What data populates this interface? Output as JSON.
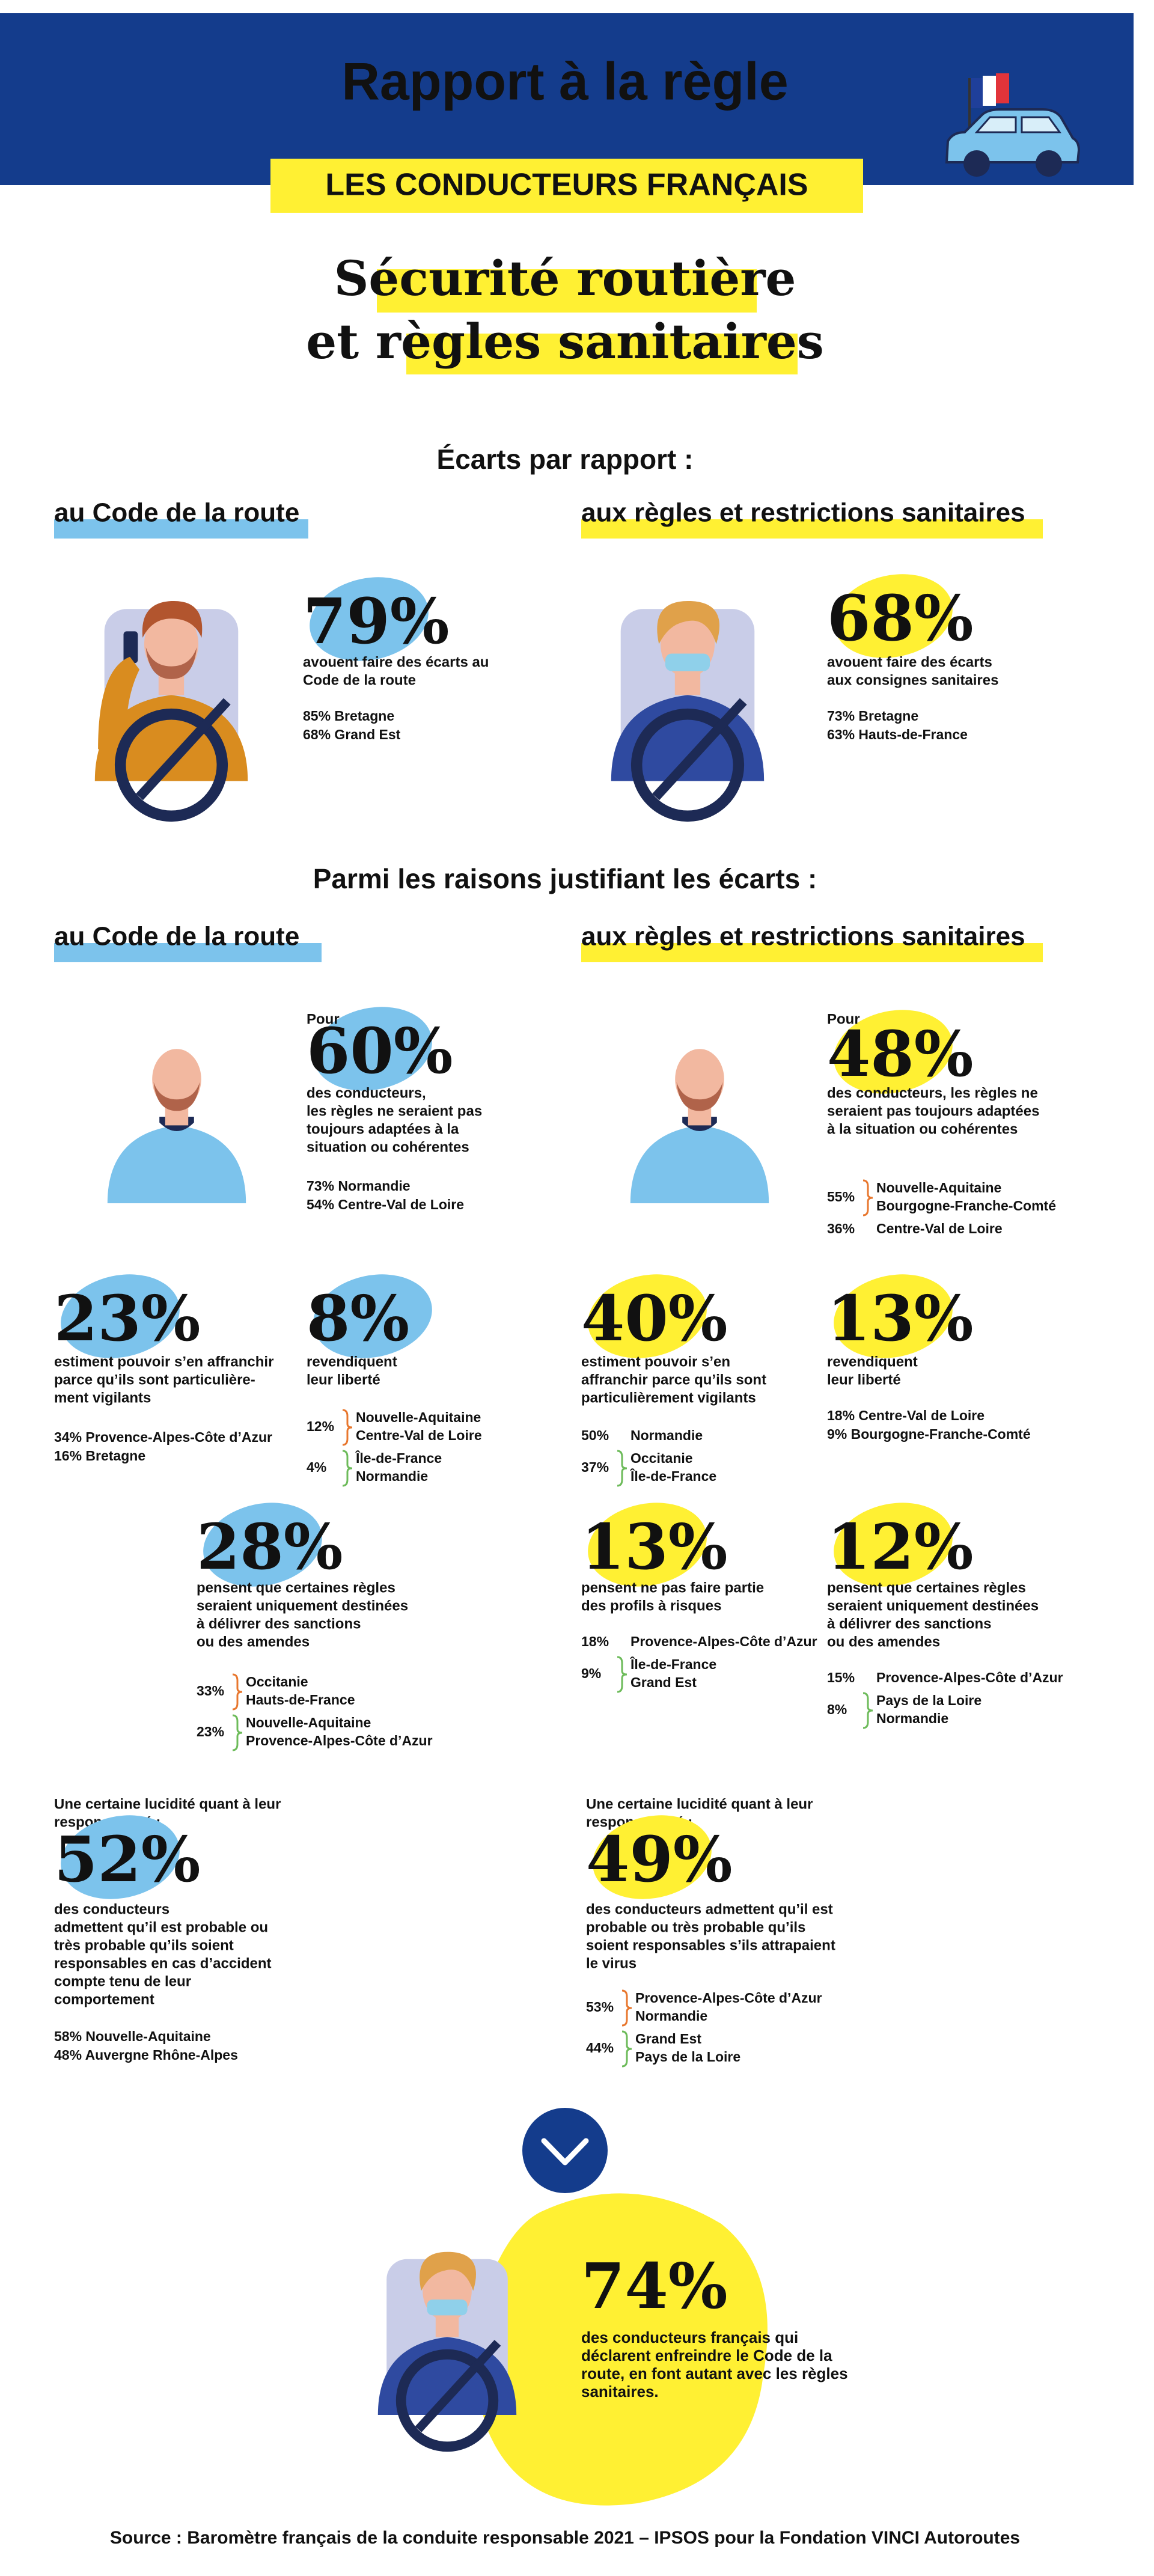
{
  "header": {
    "title": "Rapport à la règle",
    "subtitle": "LES CONDUCTEURS FRANÇAIS"
  },
  "headline": [
    "Sécurité routière",
    "et règles sanitaires"
  ],
  "sections": [
    {
      "title": "Écarts par rapport :",
      "columns": [
        "au Code de la route",
        "aux règles et restrictions sanitaires"
      ]
    },
    {
      "title": "Parmi les raisons justifiant les écarts :",
      "columns": [
        "au Code de la route",
        "aux règles et restrictions sanitaires"
      ]
    }
  ],
  "stats": [
    {
      "value": "79%",
      "lines": [
        "avouent faire des écarts au",
        "Code de la route"
      ],
      "details": [
        {
          "text": "85% Bretagne",
          "color": "#e8772e"
        },
        {
          "text": "68% Grand Est",
          "color": "#6dbb5a"
        }
      ]
    },
    {
      "value": "68%",
      "lines": [
        "avouent faire des écarts",
        "aux consignes sanitaires"
      ],
      "details": [
        {
          "text": "73% Bretagne",
          "color": "#e8772e"
        },
        {
          "text": "63% Hauts-de-France",
          "color": "#6dbb5a"
        }
      ]
    },
    {
      "intro": "Pour",
      "value": "60%",
      "lines": [
        "des conducteurs,",
        "les règles ne seraient pas",
        "toujours adaptées à la",
        "situation ou cohérentes"
      ],
      "details": [
        {
          "text": "73% Normandie",
          "color": "#e8772e"
        },
        {
          "text": "54% Centre-Val de Loire",
          "color": "#6dbb5a"
        }
      ]
    },
    {
      "intro": "Pour",
      "value": "48%",
      "lines": [
        "des conducteurs, les règles ne",
        "seraient pas toujours adaptées",
        "à la situation ou cohérentes"
      ],
      "details": [
        {
          "pct": "55%",
          "items": [
            "Nouvelle-Aquitaine",
            "Bourgogne-Franche-Comté"
          ],
          "color": "#e8772e"
        },
        {
          "pct": "36%",
          "items": [
            "Centre-Val de Loire"
          ],
          "color": "#6dbb5a"
        }
      ]
    },
    {
      "value": "23%",
      "lines": [
        "estiment pouvoir s’en affranchir",
        "parce qu’ils sont particulière-",
        "ment vigilants"
      ],
      "details": [
        {
          "text": "34% Provence-Alpes-Côte d’Azur",
          "color": "#e8772e"
        },
        {
          "text": "16% Bretagne",
          "color": "#6dbb5a"
        }
      ]
    },
    {
      "value": "8%",
      "lines": [
        "revendiquent",
        "leur liberté"
      ],
      "details": [
        {
          "pct": "12%",
          "items": [
            "Nouvelle-Aquitaine",
            "Centre-Val de Loire"
          ],
          "color": "#e8772e"
        },
        {
          "pct": "4%",
          "items": [
            "Île-de-France",
            "Normandie"
          ],
          "color": "#6dbb5a"
        }
      ]
    },
    {
      "value": "40%",
      "lines": [
        "estiment pouvoir s’en",
        "affranchir parce qu’ils sont",
        "particulièrement vigilants"
      ],
      "details": [
        {
          "pct": "50%",
          "items": [
            "Normandie"
          ],
          "color": "#e8772e"
        },
        {
          "pct": "37%",
          "items": [
            "Occitanie",
            "Île-de-France"
          ],
          "color": "#6dbb5a"
        }
      ]
    },
    {
      "value": "13%",
      "lines": [
        "revendiquent",
        "leur liberté"
      ],
      "details": [
        {
          "text": "18% Centre-Val de Loire",
          "color": "#e8772e"
        },
        {
          "text": "9% Bourgogne-Franche-Comté",
          "color": "#6dbb5a"
        }
      ]
    },
    {
      "value": "28%",
      "lines": [
        "pensent que certaines règles",
        "seraient uniquement destinées",
        "à délivrer des sanctions",
        "ou des amendes"
      ],
      "details": [
        {
          "pct": "33%",
          "items": [
            "Occitanie",
            "Hauts-de-France"
          ],
          "color": "#e8772e"
        },
        {
          "pct": "23%",
          "items": [
            "Nouvelle-Aquitaine",
            "Provence-Alpes-Côte d’Azur"
          ],
          "color": "#6dbb5a"
        }
      ]
    },
    {
      "value": "13%",
      "lines": [
        "pensent ne pas faire partie",
        "des profils à risques"
      ],
      "details": [
        {
          "pct": "18%",
          "items": [
            "Provence-Alpes-Côte d’Azur"
          ],
          "color": "#e8772e"
        },
        {
          "pct": "9%",
          "items": [
            "Île-de-France",
            "Grand Est"
          ],
          "color": "#6dbb5a"
        }
      ]
    },
    {
      "value": "12%",
      "lines": [
        "pensent que certaines règles",
        "seraient uniquement destinées",
        "à délivrer des sanctions",
        "ou des amendes"
      ],
      "details": [
        {
          "pct": "15%",
          "items": [
            "Provence-Alpes-Côte d’Azur"
          ],
          "color": "#e8772e"
        },
        {
          "pct": "8%",
          "items": [
            "Pays de la Loire",
            "Normandie"
          ],
          "color": "#6dbb5a"
        }
      ]
    },
    {
      "lead": [
        "Une certaine lucidité quant à leur",
        "responsabilité :"
      ],
      "value": "52%",
      "lines": [
        "des conducteurs",
        "admettent qu’il est probable ou",
        "très probable qu’ils soient",
        "responsables en cas d’accident",
        "compte tenu de leur",
        "comportement"
      ],
      "details": [
        {
          "text": "58% Nouvelle-Aquitaine",
          "color": "#e8772e"
        },
        {
          "text": "48% Auvergne Rhône-Alpes",
          "color": "#6dbb5a"
        }
      ]
    },
    {
      "lead": [
        "Une certaine lucidité quant à leur",
        "responsabilité :"
      ],
      "value": "49%",
      "lines": [
        "des conducteurs admettent qu’il est",
        "probable ou très probable qu’ils",
        "soient responsables s’ils attrapaient",
        "le virus"
      ],
      "details": [
        {
          "pct": "53%",
          "items": [
            "Provence-Alpes-Côte d’Azur",
            "Normandie"
          ],
          "color": "#e8772e"
        },
        {
          "pct": "44%",
          "items": [
            "Grand Est",
            "Pays de la Loire"
          ],
          "color": "#6dbb5a"
        }
      ]
    },
    {
      "value": "74%",
      "lines": [
        "des conducteurs français qui",
        "déclarent enfreindre le Code de la",
        "route, en font autant avec les règles",
        "sanitaires."
      ],
      "details": []
    }
  ],
  "source": "Source : Baromètre français de la conduite responsable 2021 – IPSOS pour la Fondation VINCI Autoroutes"
}
